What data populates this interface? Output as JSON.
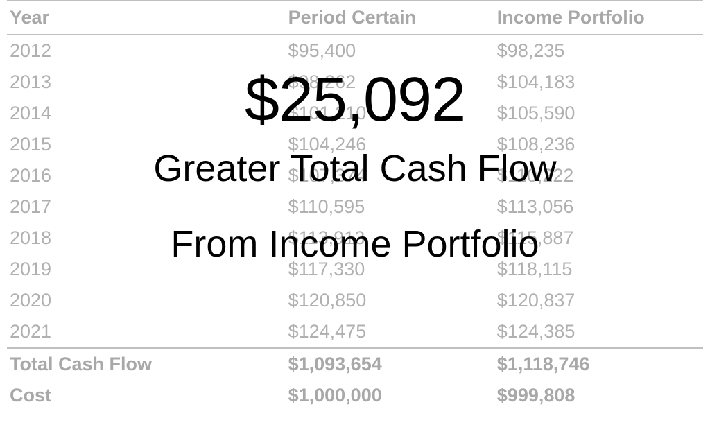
{
  "table": {
    "columns": [
      "Year",
      "Period Certain",
      "Income Portfolio"
    ],
    "rows": [
      [
        "2012",
        "$95,400",
        "$98,235"
      ],
      [
        "2013",
        "$98,262",
        "$104,183"
      ],
      [
        "2014",
        "$101,210",
        "$105,590"
      ],
      [
        "2015",
        "$104,246",
        "$108,236"
      ],
      [
        "2016",
        "$107,374",
        "$110,222"
      ],
      [
        "2017",
        "$110,595",
        "$113,056"
      ],
      [
        "2018",
        "$113,913",
        "$115,887"
      ],
      [
        "2019",
        "$117,330",
        "$118,115"
      ],
      [
        "2020",
        "$120,850",
        "$120,837"
      ],
      [
        "2021",
        "$124,475",
        "$124,385"
      ]
    ],
    "summary": [
      [
        "Total Cash Flow",
        "$1,093,654",
        "$1,118,746"
      ],
      [
        "Cost",
        "$1,000,000",
        "$999,808"
      ]
    ],
    "header_color": "#a8a8a8",
    "data_color": "#b0b0b0",
    "border_color": "#c0c0c0",
    "font_size": 27
  },
  "overlay": {
    "amount": "$25,092",
    "line1": "Greater Total Cash Flow",
    "line2": "From Income Portfolio",
    "text_color": "#000000",
    "amount_fontsize": 90,
    "line_fontsize": 54
  },
  "background_color": "#ffffff"
}
